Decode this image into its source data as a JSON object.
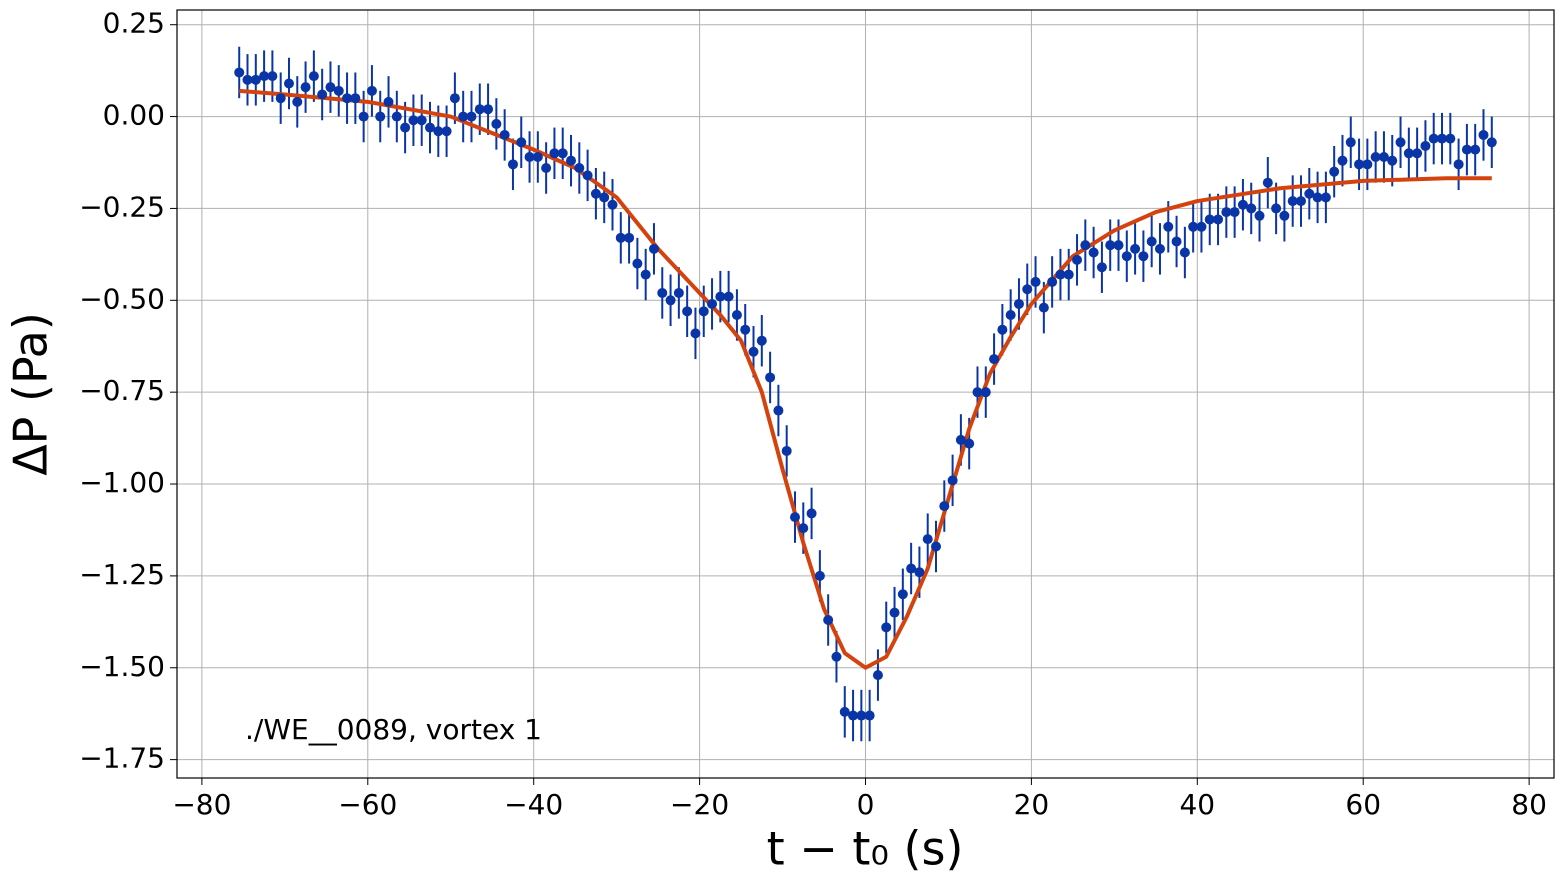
{
  "chart_data": {
    "type": "errorbar",
    "xlabel": "t − t₀ (s)",
    "ylabel": "ΔP (Pa)",
    "annotation": "./WE__0089, vortex 1",
    "grid": true,
    "xlim": [
      -83,
      83
    ],
    "ylim": [
      -1.8,
      0.29
    ],
    "xticks": [
      {
        "value": -80,
        "label": "−80"
      },
      {
        "value": -60,
        "label": "−60"
      },
      {
        "value": -40,
        "label": "−40"
      },
      {
        "value": -20,
        "label": "−20"
      },
      0,
      20,
      40,
      60,
      80
    ],
    "yticks": [
      0.25,
      {
        "value": 0,
        "label": "0.00"
      },
      {
        "value": -0.25,
        "label": "−0.25"
      },
      {
        "value": -0.5,
        "label": "−0.50"
      },
      {
        "value": -0.75,
        "label": "−0.75"
      },
      {
        "value": -1,
        "label": "−1.00"
      },
      {
        "value": -1.25,
        "label": "−1.25"
      },
      {
        "value": -1.5,
        "label": "−1.50"
      },
      {
        "value": -1.75,
        "label": "−1.75"
      }
    ],
    "points": {
      "color": "#0a35a6",
      "yerr": 0.07,
      "x": [
        -75.5,
        -74.5,
        -73.5,
        -72.5,
        -71.5,
        -70.5,
        -69.5,
        -68.5,
        -67.5,
        -66.5,
        -65.5,
        -64.5,
        -63.5,
        -62.5,
        -61.5,
        -60.5,
        -59.5,
        -58.5,
        -57.5,
        -56.5,
        -55.5,
        -54.5,
        -53.5,
        -52.5,
        -51.5,
        -50.5,
        -49.5,
        -48.5,
        -47.5,
        -46.5,
        -45.5,
        -44.5,
        -43.5,
        -42.5,
        -41.5,
        -40.5,
        -39.5,
        -38.5,
        -37.5,
        -36.5,
        -35.5,
        -34.5,
        -33.5,
        -32.5,
        -31.5,
        -30.5,
        -29.5,
        -28.5,
        -27.5,
        -26.5,
        -25.5,
        -24.5,
        -23.5,
        -22.5,
        -21.5,
        -20.5,
        -19.5,
        -18.5,
        -17.5,
        -16.5,
        -15.5,
        -14.5,
        -13.5,
        -12.5,
        -11.5,
        -10.5,
        -9.5,
        -8.5,
        -7.5,
        -6.5,
        -5.5,
        -4.5,
        -3.5,
        -2.5,
        -1.5,
        -0.5,
        0.5,
        1.5,
        2.5,
        3.5,
        4.5,
        5.5,
        6.5,
        7.5,
        8.5,
        9.5,
        10.5,
        11.5,
        12.5,
        13.5,
        14.5,
        15.5,
        16.5,
        17.5,
        18.5,
        19.5,
        20.5,
        21.5,
        22.5,
        23.5,
        24.5,
        25.5,
        26.5,
        27.5,
        28.5,
        29.5,
        30.5,
        31.5,
        32.5,
        33.5,
        34.5,
        35.5,
        36.5,
        37.5,
        38.5,
        39.5,
        40.5,
        41.5,
        42.5,
        43.5,
        44.5,
        45.5,
        46.5,
        47.5,
        48.5,
        49.5,
        50.5,
        51.5,
        52.5,
        53.5,
        54.5,
        55.5,
        56.5,
        57.5,
        58.5,
        59.5,
        60.5,
        61.5,
        62.5,
        63.5,
        64.5,
        65.5,
        66.5,
        67.5,
        68.5,
        69.5,
        70.5,
        71.5,
        72.5,
        73.5,
        74.5,
        75.5
      ],
      "values": [
        0.12,
        0.1,
        0.1,
        0.11,
        0.11,
        0.05,
        0.09,
        0.04,
        0.08,
        0.11,
        0.06,
        0.08,
        0.07,
        0.05,
        0.05,
        0.0,
        0.07,
        0.0,
        0.04,
        0.0,
        -0.03,
        -0.01,
        -0.01,
        -0.03,
        -0.04,
        -0.04,
        0.05,
        0.0,
        0.0,
        0.02,
        0.02,
        -0.02,
        -0.05,
        -0.13,
        -0.07,
        -0.11,
        -0.11,
        -0.14,
        -0.1,
        -0.1,
        -0.12,
        -0.14,
        -0.16,
        -0.21,
        -0.22,
        -0.24,
        -0.33,
        -0.33,
        -0.4,
        -0.43,
        -0.36,
        -0.48,
        -0.5,
        -0.48,
        -0.53,
        -0.59,
        -0.53,
        -0.51,
        -0.49,
        -0.49,
        -0.54,
        -0.58,
        -0.64,
        -0.61,
        -0.71,
        -0.8,
        -0.91,
        -1.09,
        -1.12,
        -1.08,
        -1.25,
        -1.37,
        -1.47,
        -1.62,
        -1.63,
        -1.63,
        -1.63,
        -1.52,
        -1.39,
        -1.35,
        -1.3,
        -1.23,
        -1.24,
        -1.15,
        -1.17,
        -1.06,
        -0.99,
        -0.88,
        -0.89,
        -0.75,
        -0.75,
        -0.66,
        -0.58,
        -0.54,
        -0.51,
        -0.47,
        -0.45,
        -0.52,
        -0.45,
        -0.43,
        -0.43,
        -0.39,
        -0.35,
        -0.37,
        -0.41,
        -0.35,
        -0.35,
        -0.38,
        -0.36,
        -0.38,
        -0.34,
        -0.36,
        -0.3,
        -0.34,
        -0.37,
        -0.3,
        -0.3,
        -0.28,
        -0.28,
        -0.26,
        -0.26,
        -0.24,
        -0.25,
        -0.27,
        -0.18,
        -0.25,
        -0.27,
        -0.23,
        -0.23,
        -0.21,
        -0.22,
        -0.22,
        -0.15,
        -0.12,
        -0.07,
        -0.13,
        -0.13,
        -0.11,
        -0.11,
        -0.12,
        -0.07,
        -0.1,
        -0.1,
        -0.08,
        -0.06,
        -0.06,
        -0.06,
        -0.13,
        -0.09,
        -0.09,
        -0.05,
        -0.07
      ]
    },
    "fit": {
      "color": "#d4430e",
      "x": [
        -75.5,
        -70,
        -60,
        -50,
        -40,
        -35,
        -30,
        -25,
        -20,
        -17.5,
        -15,
        -12.5,
        -10,
        -7.5,
        -5,
        -2.5,
        0,
        2.5,
        5,
        7.5,
        10,
        12.5,
        15,
        17.5,
        20,
        25,
        30,
        35,
        40,
        50,
        60,
        70,
        75.5
      ],
      "values": [
        0.07,
        0.06,
        0.04,
        0.0,
        -0.09,
        -0.14,
        -0.22,
        -0.36,
        -0.48,
        -0.54,
        -0.61,
        -0.75,
        -0.96,
        -1.16,
        -1.34,
        -1.46,
        -1.5,
        -1.47,
        -1.36,
        -1.23,
        -1.04,
        -0.85,
        -0.7,
        -0.6,
        -0.51,
        -0.38,
        -0.31,
        -0.26,
        -0.23,
        -0.195,
        -0.175,
        -0.168,
        -0.168
      ]
    }
  }
}
